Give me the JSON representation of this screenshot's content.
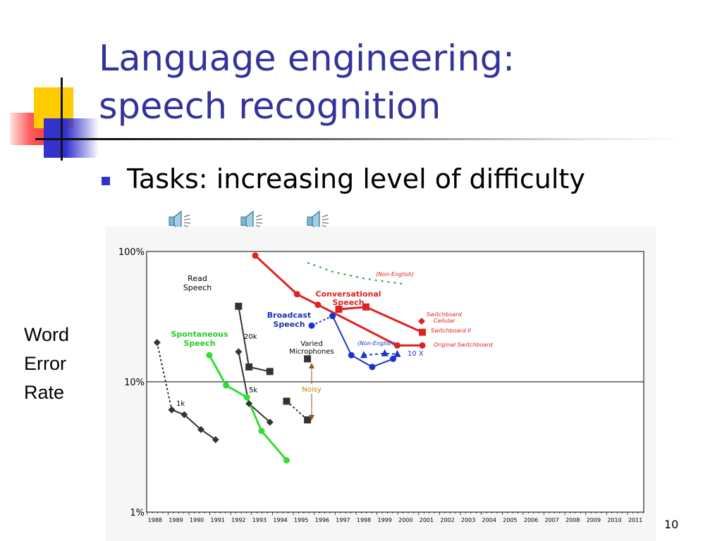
{
  "slide": {
    "title_line1": "Language engineering:",
    "title_line2": "speech recognition",
    "bullet": "Tasks: increasing level of difficulty",
    "page_number": "10",
    "speaker_icons": [
      "speaker-icon",
      "speaker-icon",
      "speaker-icon"
    ],
    "colors": {
      "title": "#333399",
      "accent": "#3333cc"
    }
  },
  "chart_data": {
    "type": "line",
    "y_scale": "log",
    "ylim": [
      1,
      100
    ],
    "xlim": [
      1987.6,
      2011.4
    ],
    "ylabel": [
      "Word",
      "Error",
      "Rate"
    ],
    "y_ticks": [
      {
        "value": 1,
        "label": "1%"
      },
      {
        "value": 10,
        "label": "10%"
      },
      {
        "value": 100,
        "label": "100%"
      }
    ],
    "x_ticks": [
      "1988",
      "1989",
      "1990",
      "1991",
      "1992",
      "1993",
      "1994",
      "1995",
      "1996",
      "1997",
      "1998",
      "1999",
      "2000",
      "2001",
      "2002",
      "2003",
      "2004",
      "2005",
      "2006",
      "2007",
      "2008",
      "2009",
      "2010",
      "2011"
    ],
    "gridline_value": 10,
    "series": [
      {
        "id": "rm-1k",
        "color": "#333333",
        "marker": "diamond",
        "dash": "3,3",
        "points": [
          [
            1988.1,
            20
          ],
          [
            1988.8,
            6.1
          ]
        ]
      },
      {
        "id": "rm-1k-b",
        "color": "#333333",
        "marker": "diamond",
        "points": [
          [
            1988.8,
            6.1
          ],
          [
            1989.4,
            5.6
          ],
          [
            1990.2,
            4.3
          ],
          [
            1990.9,
            3.6
          ]
        ]
      },
      {
        "id": "rm-20k",
        "color": "#333333",
        "marker": "square",
        "points": [
          [
            1992.0,
            38
          ],
          [
            1992.5,
            13
          ],
          [
            1993.5,
            12
          ]
        ]
      },
      {
        "id": "rm-5k",
        "color": "#333333",
        "marker": "diamond",
        "points": [
          [
            1992.0,
            17
          ],
          [
            1992.5,
            6.8
          ],
          [
            1993.5,
            4.9
          ]
        ]
      },
      {
        "id": "spontaneous",
        "color": "#33dd33",
        "marker": "circle",
        "width": 3,
        "points": [
          [
            1990.6,
            16
          ],
          [
            1991.4,
            9.4
          ],
          [
            1992.4,
            7.6
          ],
          [
            1993.1,
            4.2
          ],
          [
            1994.3,
            2.5
          ]
        ]
      },
      {
        "id": "broadcast",
        "color": "#1a33cc",
        "marker": "circle",
        "width": 2,
        "points": [
          [
            1996.5,
            32
          ],
          [
            1997.4,
            16
          ],
          [
            1998.4,
            13
          ],
          [
            1999.4,
            15
          ]
        ]
      },
      {
        "id": "broadcast-start",
        "color": "#1a33cc",
        "marker": "circle",
        "dash": "3,3",
        "points": [
          [
            1995.5,
            27
          ],
          [
            1996.5,
            32
          ]
        ]
      },
      {
        "id": "broadcast-nonenglish",
        "color": "#1a33cc",
        "marker": "triangle",
        "dash": "4,4",
        "points": [
          [
            1998.0,
            16
          ],
          [
            1999.0,
            16.5
          ],
          [
            1999.6,
            16.3
          ]
        ]
      },
      {
        "id": "conversational",
        "color": "#dd2222",
        "marker": "circle",
        "width": 3,
        "points": [
          [
            1992.8,
            93
          ],
          [
            1994.8,
            47
          ],
          [
            1995.8,
            39
          ],
          [
            1999.6,
            19
          ],
          [
            2000.8,
            19
          ]
        ]
      },
      {
        "id": "switchboard-ii",
        "color": "#dd2222",
        "marker": "square",
        "width": 3,
        "points": [
          [
            1996.8,
            36
          ],
          [
            1998.1,
            37.5
          ],
          [
            2000.8,
            24
          ]
        ]
      },
      {
        "id": "varied-mics",
        "color": "#333333",
        "marker": "square",
        "dash": "3,3",
        "points": [
          [
            1994.3,
            7.1
          ],
          [
            1995.3,
            5.1
          ]
        ]
      },
      {
        "id": "nonenglish-conversational",
        "color": "#339933",
        "marker": "none",
        "dash": "3,6",
        "points": [
          [
            1995.3,
            82
          ],
          [
            1996.5,
            70
          ],
          [
            1998.0,
            62
          ],
          [
            2000.0,
            56
          ]
        ]
      }
    ],
    "standalone_markers": [
      {
        "id": "varied-mics-point",
        "x": 1995.3,
        "y": 15,
        "color": "#333333",
        "marker": "square"
      }
    ],
    "annotations": {
      "read_speech": [
        "Read",
        "Speech"
      ],
      "spontaneous_speech": [
        "Spontaneous",
        "Speech"
      ],
      "broadcast_speech": [
        "Broadcast",
        "Speech"
      ],
      "conversational_speech": [
        "Conversational",
        "Speech"
      ],
      "varied_microphones": [
        "Varied",
        "Microphones"
      ],
      "noisy": "Noisy",
      "vocab_1k": "1k",
      "vocab_5k": "5k",
      "vocab_20k": "20k",
      "ten_x": "10 X",
      "non_english_top": "(Non-English)",
      "non_english_mid": "(Non-English)",
      "switchboard_cellular": [
        "Switchboard",
        "Cellular"
      ],
      "switchboard_ii": "Switchboard II",
      "original_switchboard": "Original Switchboard"
    }
  }
}
